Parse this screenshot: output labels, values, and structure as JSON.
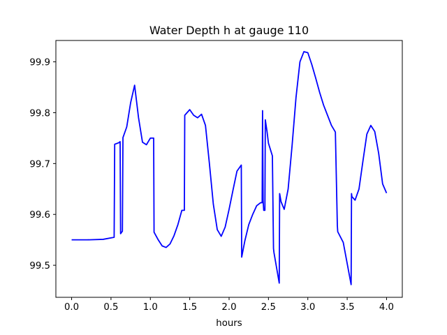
{
  "chart_data": {
    "type": "line",
    "title": "Water Depth h at gauge 110",
    "xlabel": "hours",
    "ylabel": "",
    "xlim": [
      -0.2,
      4.2
    ],
    "ylim": [
      99.437,
      99.942
    ],
    "xticks": [
      0.0,
      0.5,
      1.0,
      1.5,
      2.0,
      2.5,
      3.0,
      3.5,
      4.0
    ],
    "xtick_labels": [
      "0.0",
      "0.5",
      "1.0",
      "1.5",
      "2.0",
      "2.5",
      "3.0",
      "3.5",
      "4.0"
    ],
    "yticks": [
      99.5,
      99.6,
      99.7,
      99.8,
      99.9
    ],
    "ytick_labels": [
      "99.5",
      "99.6",
      "99.7",
      "99.8",
      "99.9"
    ],
    "grid": false,
    "color": "#0000ff",
    "series": [
      {
        "x": [
          0.0,
          0.2,
          0.4,
          0.54,
          0.547,
          0.6,
          0.616,
          0.622,
          0.645,
          0.652,
          0.7,
          0.75,
          0.8,
          0.85,
          0.9,
          0.95,
          1.0,
          1.042,
          1.047,
          1.1,
          1.15,
          1.2,
          1.25,
          1.3,
          1.35,
          1.4,
          1.432,
          1.437,
          1.5,
          1.55,
          1.6,
          1.65,
          1.7,
          1.75,
          1.8,
          1.85,
          1.9,
          1.95,
          2.0,
          2.05,
          2.1,
          2.155,
          2.16,
          2.2,
          2.25,
          2.3,
          2.35,
          2.4,
          2.42,
          2.425,
          2.432,
          2.44,
          2.455,
          2.46,
          2.482,
          2.5,
          2.55,
          2.564,
          2.57,
          2.637,
          2.642,
          2.66,
          2.7,
          2.75,
          2.8,
          2.85,
          2.9,
          2.95,
          3.0,
          3.05,
          3.1,
          3.15,
          3.2,
          3.25,
          3.3,
          3.35,
          3.375,
          3.38,
          3.45,
          3.55,
          3.555,
          3.56,
          3.6,
          3.65,
          3.7,
          3.75,
          3.8,
          3.85,
          3.9,
          3.95,
          4.0
        ],
        "y": [
          99.55,
          99.55,
          99.551,
          99.555,
          99.738,
          99.741,
          99.743,
          99.562,
          99.567,
          99.751,
          99.772,
          99.82,
          99.854,
          99.79,
          99.742,
          99.737,
          99.75,
          99.75,
          99.565,
          99.55,
          99.538,
          99.535,
          99.542,
          99.558,
          99.58,
          99.608,
          99.608,
          99.795,
          99.806,
          99.795,
          99.79,
          99.797,
          99.775,
          99.7,
          99.62,
          99.57,
          99.557,
          99.575,
          99.61,
          99.648,
          99.685,
          99.697,
          99.516,
          99.548,
          99.58,
          99.6,
          99.617,
          99.623,
          99.623,
          99.804,
          99.628,
          99.608,
          99.608,
          99.786,
          99.763,
          99.74,
          99.715,
          99.533,
          99.525,
          99.465,
          99.641,
          99.625,
          99.61,
          99.65,
          99.735,
          99.83,
          99.9,
          99.92,
          99.918,
          99.895,
          99.868,
          99.84,
          99.815,
          99.795,
          99.775,
          99.762,
          99.578,
          99.566,
          99.545,
          99.462,
          99.641,
          99.635,
          99.628,
          99.65,
          99.705,
          99.758,
          99.775,
          99.763,
          99.72,
          99.66,
          99.642
        ]
      }
    ]
  }
}
